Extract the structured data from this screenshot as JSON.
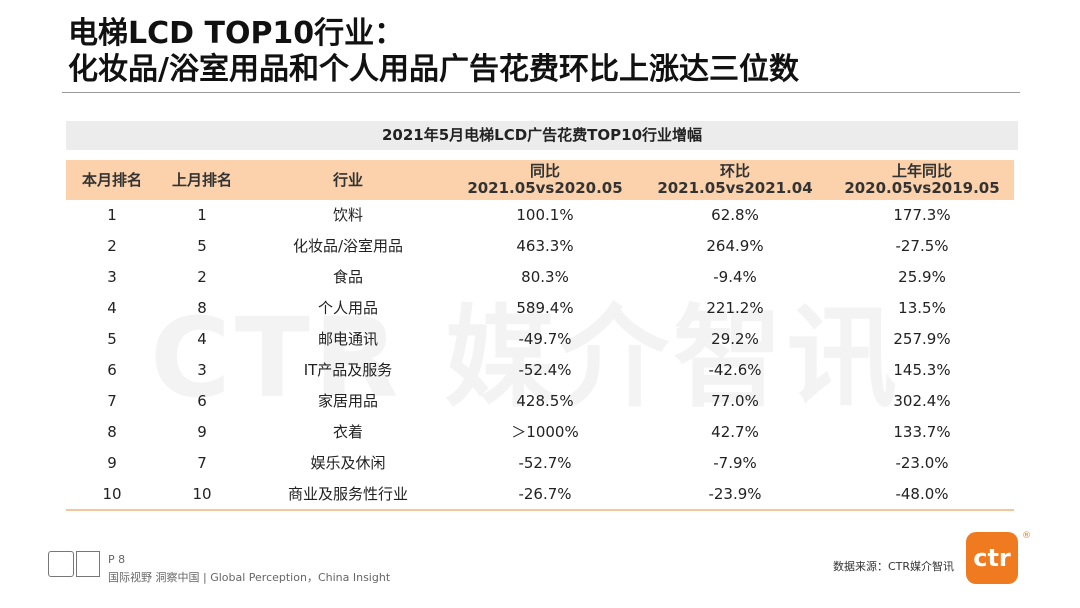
{
  "title_line1": "电梯LCD TOP10行业：",
  "title_line2": "化妆品/浴室用品和个人用品广告花费环比上涨达三位数",
  "watermark": "CTR 媒介智讯",
  "chart_data": {
    "type": "table",
    "title": "2021年5月电梯LCD广告花费TOP10行业增幅",
    "columns": [
      {
        "line1": "本月排名",
        "line2": ""
      },
      {
        "line1": "上月排名",
        "line2": ""
      },
      {
        "line1": "行业",
        "line2": ""
      },
      {
        "line1": "同比",
        "line2": "2021.05vs2020.05"
      },
      {
        "line1": "环比",
        "line2": "2021.05vs2021.04"
      },
      {
        "line1": "上年同比",
        "line2": "2020.05vs2019.05"
      }
    ],
    "rows": [
      [
        "1",
        "1",
        "饮料",
        "100.1%",
        "62.8%",
        "177.3%"
      ],
      [
        "2",
        "5",
        "化妆品/浴室用品",
        "463.3%",
        "264.9%",
        "-27.5%"
      ],
      [
        "3",
        "2",
        "食品",
        "80.3%",
        "-9.4%",
        "25.9%"
      ],
      [
        "4",
        "8",
        "个人用品",
        "589.4%",
        "221.2%",
        "13.5%"
      ],
      [
        "5",
        "4",
        "邮电通讯",
        "-49.7%",
        "29.2%",
        "257.9%"
      ],
      [
        "6",
        "3",
        "IT产品及服务",
        "-52.4%",
        "-42.6%",
        "145.3%"
      ],
      [
        "7",
        "6",
        "家居用品",
        "428.5%",
        "77.0%",
        "302.4%"
      ],
      [
        "8",
        "9",
        "衣着",
        "＞1000%",
        "42.7%",
        "133.7%"
      ],
      [
        "9",
        "7",
        "娱乐及休闲",
        "-52.7%",
        "-7.9%",
        "-23.0%"
      ],
      [
        "10",
        "10",
        "商业及服务性行业",
        "-26.7%",
        "-23.9%",
        "-48.0%"
      ]
    ]
  },
  "footer": {
    "page": "P 8",
    "slogan": "国际视野  洞察中国 | Global Perception，China Insight",
    "source": "数据来源：CTR媒介智讯",
    "logo_text": "ctr",
    "reg_mark": "®"
  },
  "colors": {
    "header_bg": "#fbd2ac",
    "caption_bg": "#ececec",
    "logo": "#f07a20"
  }
}
